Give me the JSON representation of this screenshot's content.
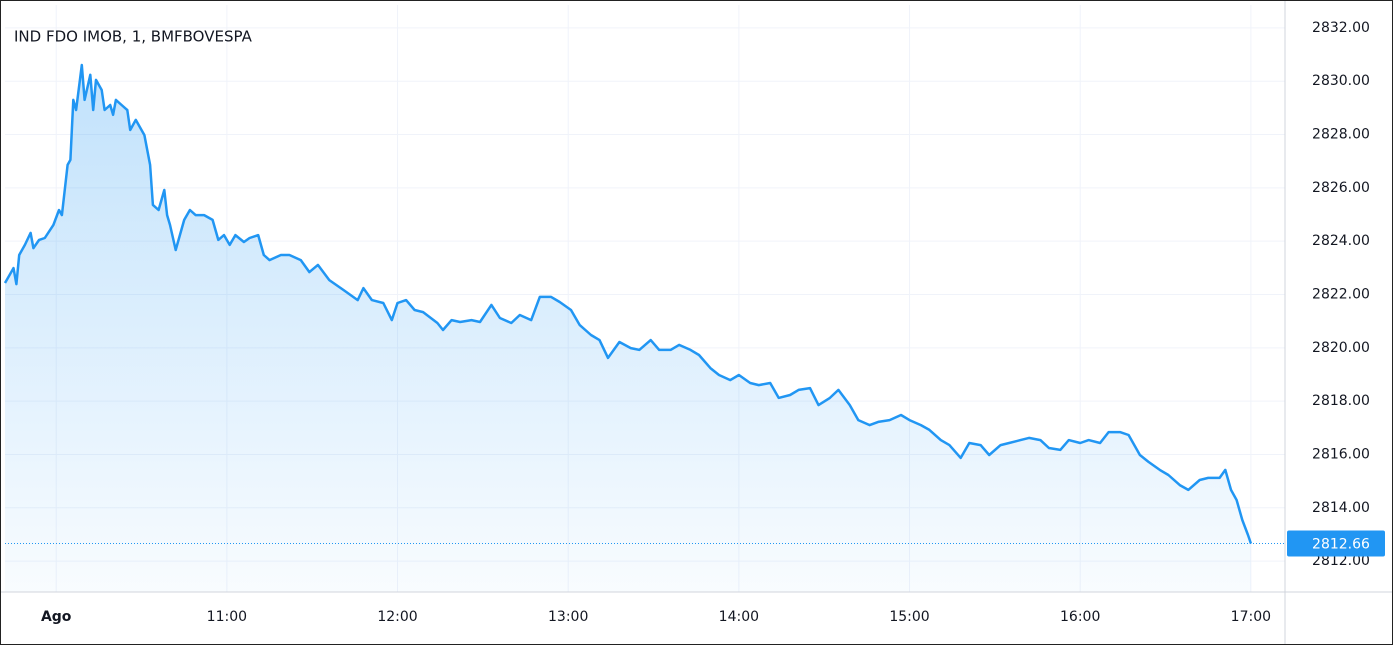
{
  "chart_data": {
    "type": "line",
    "title": "IND FDO IMOB, 1, BMFBOVESPA",
    "color": "#2196f3",
    "grid": true,
    "x": [
      582,
      585,
      586,
      587,
      589,
      591,
      592,
      594,
      596,
      599,
      601,
      602,
      604,
      605,
      606,
      607,
      609,
      610,
      612,
      613,
      614,
      616,
      617,
      619,
      620,
      621,
      623,
      625,
      626,
      628,
      631,
      633,
      634,
      636,
      638,
      639,
      640,
      642,
      645,
      647,
      649,
      652,
      655,
      657,
      659,
      661,
      663,
      666,
      668,
      671,
      673,
      675,
      679,
      682,
      686,
      689,
      692,
      696,
      701,
      706,
      708,
      711,
      715,
      718,
      720,
      723,
      726,
      729,
      734,
      736,
      739,
      742,
      746,
      749,
      753,
      756,
      760,
      763,
      767,
      770,
      774,
      777,
      781,
      784,
      788,
      791,
      794,
      798,
      802,
      805,
      809,
      812,
      816,
      819,
      823,
      826,
      830,
      833,
      837,
      840,
      844,
      847,
      851,
      854,
      858,
      861,
      865,
      868,
      872,
      875,
      879,
      882,
      886,
      889,
      893,
      897,
      900,
      904,
      907,
      911,
      914,
      918,
      921,
      925,
      928,
      932,
      935,
      939,
      942,
      946,
      949,
      953,
      956,
      960,
      963,
      967,
      970,
      974,
      977,
      981,
      984,
      988,
      991,
      995,
      998,
      1002,
      1005,
      1009,
      1011,
      1013,
      1015,
      1017,
      1019,
      1020
    ],
    "values": [
      2822.43,
      2822.99,
      2822.39,
      2823.48,
      2823.86,
      2824.31,
      2823.74,
      2824.05,
      2824.12,
      2824.61,
      2825.17,
      2824.98,
      2826.86,
      2827.05,
      2829.3,
      2828.92,
      2830.61,
      2829.3,
      2830.24,
      2828.92,
      2830.05,
      2829.67,
      2828.92,
      2829.11,
      2828.74,
      2829.3,
      2829.11,
      2828.92,
      2828.17,
      2828.55,
      2827.98,
      2826.86,
      2825.36,
      2825.17,
      2825.92,
      2824.98,
      2824.61,
      2823.67,
      2824.8,
      2825.17,
      2824.98,
      2824.98,
      2824.8,
      2824.05,
      2824.23,
      2823.86,
      2824.23,
      2823.97,
      2824.12,
      2824.23,
      2823.48,
      2823.29,
      2823.48,
      2823.48,
      2823.29,
      2822.84,
      2823.11,
      2822.54,
      2822.17,
      2821.79,
      2822.24,
      2821.79,
      2821.68,
      2821.04,
      2821.68,
      2821.79,
      2821.42,
      2821.34,
      2820.93,
      2820.67,
      2821.04,
      2820.97,
      2821.04,
      2820.97,
      2821.61,
      2821.12,
      2820.93,
      2821.23,
      2821.04,
      2821.91,
      2821.91,
      2821.72,
      2821.42,
      2820.86,
      2820.48,
      2820.29,
      2819.62,
      2820.22,
      2819.99,
      2819.92,
      2820.29,
      2819.92,
      2819.92,
      2820.11,
      2819.92,
      2819.73,
      2819.24,
      2818.98,
      2818.79,
      2818.98,
      2818.68,
      2818.6,
      2818.68,
      2818.12,
      2818.23,
      2818.42,
      2818.49,
      2817.85,
      2818.12,
      2818.42,
      2817.85,
      2817.29,
      2817.1,
      2817.22,
      2817.29,
      2817.48,
      2817.29,
      2817.1,
      2816.92,
      2816.54,
      2816.35,
      2815.87,
      2816.43,
      2816.35,
      2815.98,
      2816.35,
      2816.43,
      2816.54,
      2816.62,
      2816.54,
      2816.24,
      2816.17,
      2816.54,
      2816.43,
      2816.54,
      2816.43,
      2816.84,
      2816.84,
      2816.73,
      2815.98,
      2815.72,
      2815.42,
      2815.23,
      2814.85,
      2814.67,
      2815.04,
      2815.12,
      2815.12,
      2815.42,
      2814.67,
      2814.29,
      2813.54,
      2812.98,
      2812.66
    ],
    "xlim": [
      582,
      1032
    ],
    "xticks": [
      {
        "value": 600,
        "label": "Ago"
      },
      {
        "value": 660,
        "label": "11:00"
      },
      {
        "value": 720,
        "label": "12:00"
      },
      {
        "value": 780,
        "label": "13:00"
      },
      {
        "value": 840,
        "label": "14:00"
      },
      {
        "value": 900,
        "label": "15:00"
      },
      {
        "value": 960,
        "label": "16:00"
      },
      {
        "value": 1020,
        "label": "17:00"
      }
    ],
    "ylim": [
      2810.84,
      2832.86
    ],
    "yticks": [
      {
        "value": 2812,
        "label": "2812.00"
      },
      {
        "value": 2814,
        "label": "2814.00"
      },
      {
        "value": 2816,
        "label": "2816.00"
      },
      {
        "value": 2818,
        "label": "2818.00"
      },
      {
        "value": 2820,
        "label": "2820.00"
      },
      {
        "value": 2822,
        "label": "2822.00"
      },
      {
        "value": 2824,
        "label": "2824.00"
      },
      {
        "value": 2826,
        "label": "2826.00"
      },
      {
        "value": 2828,
        "label": "2828.00"
      },
      {
        "value": 2830,
        "label": "2830.00"
      },
      {
        "value": 2832,
        "label": "2832.00"
      }
    ]
  }
}
